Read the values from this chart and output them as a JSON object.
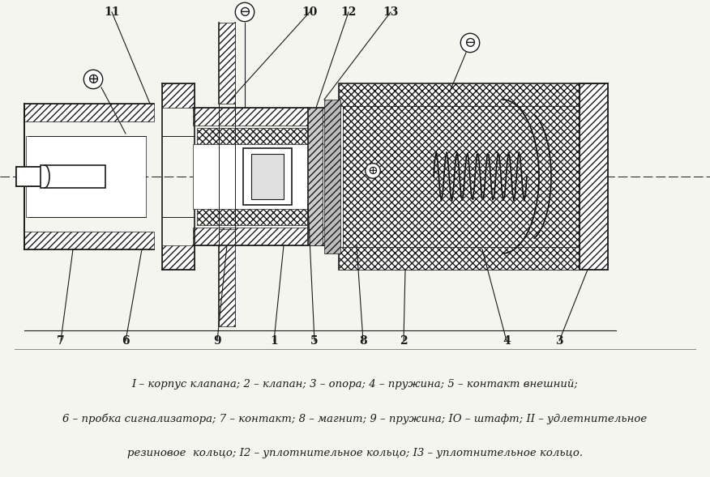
{
  "background_color": "#f5f5f0",
  "lc": "#1a1a1a",
  "legend_lines": [
    "I – корпус клапана; 2 – клапан; 3 – опора; 4 – пружина; 5 – контакт внешний;",
    "6 – пробка сигнализатора; 7 – контакт; 8 – магнит; 9 – пружина; IO – штафт; II – удлетнительное",
    "резиновое  кольцо; I2 – уплотнительное кольцо; I3 – уплотнительное кольцо."
  ],
  "font_size_labels": 10,
  "font_size_legend": 9.5
}
